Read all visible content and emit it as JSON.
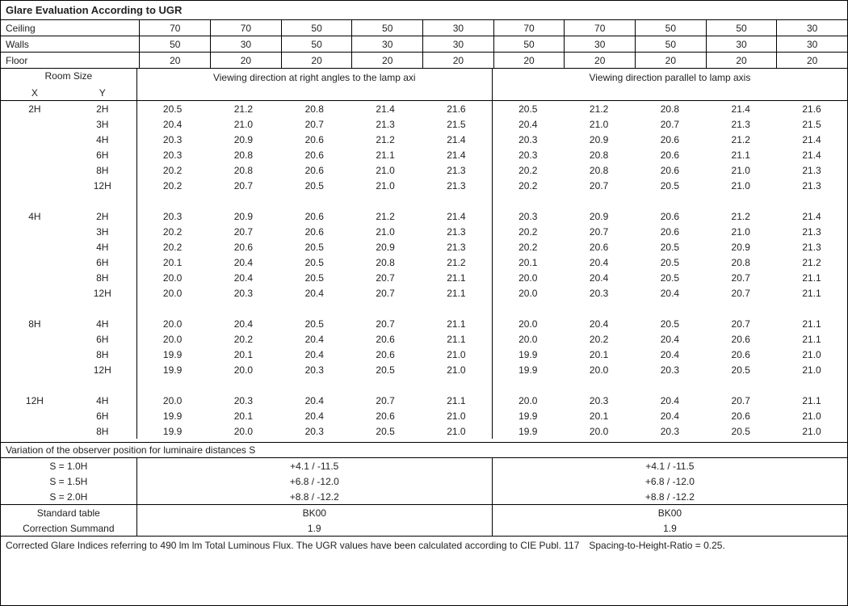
{
  "title": "Glare Evaluation According to UGR",
  "reflectance": {
    "labels": {
      "ceiling": "Ceiling",
      "walls": "Walls",
      "floor": "Floor"
    },
    "ceiling": [
      "70",
      "70",
      "50",
      "50",
      "30",
      "70",
      "70",
      "50",
      "50",
      "30"
    ],
    "walls": [
      "50",
      "30",
      "50",
      "30",
      "30",
      "50",
      "30",
      "50",
      "30",
      "30"
    ],
    "floor": [
      "20",
      "20",
      "20",
      "20",
      "20",
      "20",
      "20",
      "20",
      "20",
      "20"
    ]
  },
  "headers": {
    "roomsize": "Room Size",
    "x": "X",
    "y": "Y",
    "dir_left": "Viewing direction at right angles to the lamp axi",
    "dir_right": "Viewing direction parallel to lamp axis"
  },
  "groups": [
    {
      "x": "2H",
      "rows": [
        {
          "y": "2H",
          "l": [
            "20.5",
            "21.2",
            "20.8",
            "21.4",
            "21.6"
          ],
          "r": [
            "20.5",
            "21.2",
            "20.8",
            "21.4",
            "21.6"
          ]
        },
        {
          "y": "3H",
          "l": [
            "20.4",
            "21.0",
            "20.7",
            "21.3",
            "21.5"
          ],
          "r": [
            "20.4",
            "21.0",
            "20.7",
            "21.3",
            "21.5"
          ]
        },
        {
          "y": "4H",
          "l": [
            "20.3",
            "20.9",
            "20.6",
            "21.2",
            "21.4"
          ],
          "r": [
            "20.3",
            "20.9",
            "20.6",
            "21.2",
            "21.4"
          ]
        },
        {
          "y": "6H",
          "l": [
            "20.3",
            "20.8",
            "20.6",
            "21.1",
            "21.4"
          ],
          "r": [
            "20.3",
            "20.8",
            "20.6",
            "21.1",
            "21.4"
          ]
        },
        {
          "y": "8H",
          "l": [
            "20.2",
            "20.8",
            "20.6",
            "21.0",
            "21.3"
          ],
          "r": [
            "20.2",
            "20.8",
            "20.6",
            "21.0",
            "21.3"
          ]
        },
        {
          "y": "12H",
          "l": [
            "20.2",
            "20.7",
            "20.5",
            "21.0",
            "21.3"
          ],
          "r": [
            "20.2",
            "20.7",
            "20.5",
            "21.0",
            "21.3"
          ]
        }
      ]
    },
    {
      "x": "4H",
      "rows": [
        {
          "y": "2H",
          "l": [
            "20.3",
            "20.9",
            "20.6",
            "21.2",
            "21.4"
          ],
          "r": [
            "20.3",
            "20.9",
            "20.6",
            "21.2",
            "21.4"
          ]
        },
        {
          "y": "3H",
          "l": [
            "20.2",
            "20.7",
            "20.6",
            "21.0",
            "21.3"
          ],
          "r": [
            "20.2",
            "20.7",
            "20.6",
            "21.0",
            "21.3"
          ]
        },
        {
          "y": "4H",
          "l": [
            "20.2",
            "20.6",
            "20.5",
            "20.9",
            "21.3"
          ],
          "r": [
            "20.2",
            "20.6",
            "20.5",
            "20.9",
            "21.3"
          ]
        },
        {
          "y": "6H",
          "l": [
            "20.1",
            "20.4",
            "20.5",
            "20.8",
            "21.2"
          ],
          "r": [
            "20.1",
            "20.4",
            "20.5",
            "20.8",
            "21.2"
          ]
        },
        {
          "y": "8H",
          "l": [
            "20.0",
            "20.4",
            "20.5",
            "20.7",
            "21.1"
          ],
          "r": [
            "20.0",
            "20.4",
            "20.5",
            "20.7",
            "21.1"
          ]
        },
        {
          "y": "12H",
          "l": [
            "20.0",
            "20.3",
            "20.4",
            "20.7",
            "21.1"
          ],
          "r": [
            "20.0",
            "20.3",
            "20.4",
            "20.7",
            "21.1"
          ]
        }
      ]
    },
    {
      "x": "8H",
      "rows": [
        {
          "y": "4H",
          "l": [
            "20.0",
            "20.4",
            "20.5",
            "20.7",
            "21.1"
          ],
          "r": [
            "20.0",
            "20.4",
            "20.5",
            "20.7",
            "21.1"
          ]
        },
        {
          "y": "6H",
          "l": [
            "20.0",
            "20.2",
            "20.4",
            "20.6",
            "21.1"
          ],
          "r": [
            "20.0",
            "20.2",
            "20.4",
            "20.6",
            "21.1"
          ]
        },
        {
          "y": "8H",
          "l": [
            "19.9",
            "20.1",
            "20.4",
            "20.6",
            "21.0"
          ],
          "r": [
            "19.9",
            "20.1",
            "20.4",
            "20.6",
            "21.0"
          ]
        },
        {
          "y": "12H",
          "l": [
            "19.9",
            "20.0",
            "20.3",
            "20.5",
            "21.0"
          ],
          "r": [
            "19.9",
            "20.0",
            "20.3",
            "20.5",
            "21.0"
          ]
        }
      ]
    },
    {
      "x": "12H",
      "rows": [
        {
          "y": "4H",
          "l": [
            "20.0",
            "20.3",
            "20.4",
            "20.7",
            "21.1"
          ],
          "r": [
            "20.0",
            "20.3",
            "20.4",
            "20.7",
            "21.1"
          ]
        },
        {
          "y": "6H",
          "l": [
            "19.9",
            "20.1",
            "20.4",
            "20.6",
            "21.0"
          ],
          "r": [
            "19.9",
            "20.1",
            "20.4",
            "20.6",
            "21.0"
          ]
        },
        {
          "y": "8H",
          "l": [
            "19.9",
            "20.0",
            "20.3",
            "20.5",
            "21.0"
          ],
          "r": [
            "19.9",
            "20.0",
            "20.3",
            "20.5",
            "21.0"
          ]
        }
      ]
    }
  ],
  "variation": {
    "title": "Variation of the observer position for luminaire distances S",
    "rows": [
      {
        "label": "S = 1.0H",
        "l": "+4.1 / -11.5",
        "r": "+4.1 / -11.5"
      },
      {
        "label": "S = 1.5H",
        "l": "+6.8 / -12.0",
        "r": "+6.8 / -12.0"
      },
      {
        "label": "S = 2.0H",
        "l": "+8.8 / -12.2",
        "r": "+8.8 / -12.2"
      }
    ],
    "std": [
      {
        "label": "Standard table",
        "l": "BK00",
        "r": "BK00"
      },
      {
        "label": "Correction Summand",
        "l": "1.9",
        "r": "1.9"
      }
    ]
  },
  "footnote": "Corrected Glare Indices referring to 490 lm lm Total Luminous Flux. The UGR values have been calculated according to CIE Publ. 117 Spacing-to-Height-Ratio = 0.25."
}
